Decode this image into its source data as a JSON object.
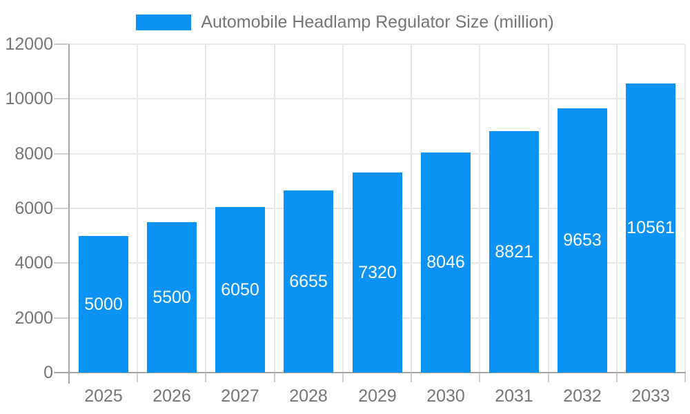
{
  "chart_data": {
    "type": "bar",
    "title": "Automobile Headlamp Regulator Size (million)",
    "categories": [
      "2025",
      "2026",
      "2027",
      "2028",
      "2029",
      "2030",
      "2031",
      "2032",
      "2033"
    ],
    "values": [
      5000,
      5500,
      6050,
      6655,
      7320,
      8046,
      8821,
      9653,
      10561
    ],
    "xlabel": "",
    "ylabel": "",
    "ylim": [
      0,
      12000
    ],
    "yticks": [
      0,
      2000,
      4000,
      6000,
      8000,
      10000,
      12000
    ],
    "grid": "horizontal and vertical light gridlines",
    "legend_position": "top-center",
    "value_labels": "inside bars, vertically centered, white"
  },
  "colors": {
    "bar": "#0b92f5",
    "axis_line": "#a6a6a6",
    "gridline": "#e6e6e6",
    "tick": "#cfcfcf",
    "axis_text": "#757575",
    "bar_label": "#ffffff",
    "background": "#ffffff"
  }
}
